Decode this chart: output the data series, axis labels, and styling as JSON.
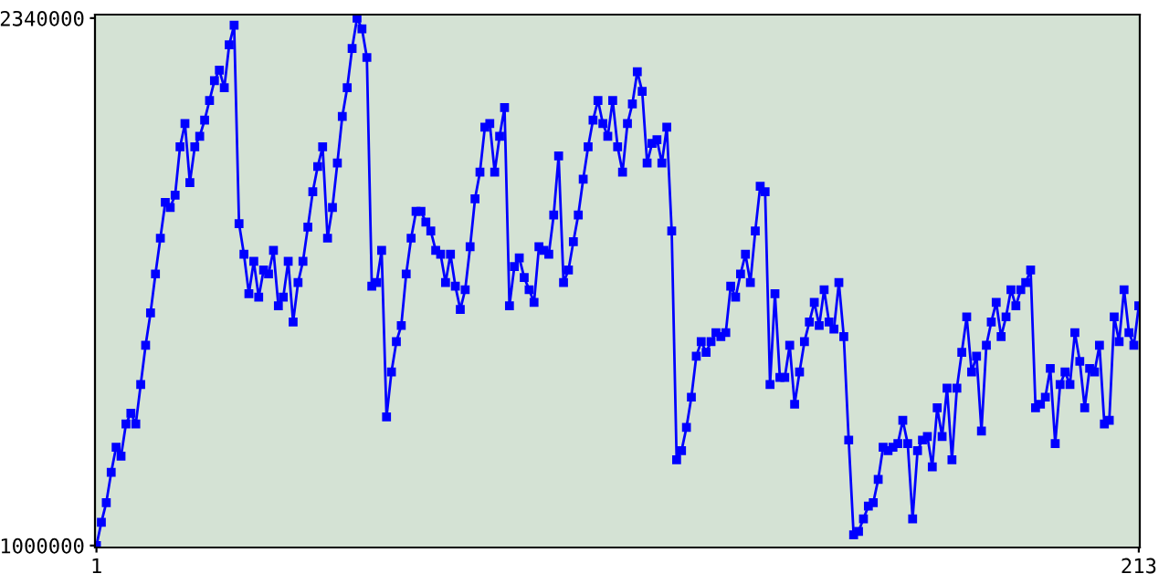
{
  "chart_data": {
    "type": "line",
    "x": [
      1,
      2,
      3,
      4,
      5,
      6,
      7,
      8,
      9,
      10,
      11,
      12,
      13,
      14,
      15,
      16,
      17,
      18,
      19,
      20,
      21,
      22,
      23,
      24,
      25,
      26,
      27,
      28,
      29,
      30,
      31,
      32,
      33,
      34,
      35,
      36,
      37,
      38,
      39,
      40,
      41,
      42,
      43,
      44,
      45,
      46,
      47,
      48,
      49,
      50,
      51,
      52,
      53,
      54,
      55,
      56,
      57,
      58,
      59,
      60,
      61,
      62,
      63,
      64,
      65,
      66,
      67,
      68,
      69,
      70,
      71,
      72,
      73,
      74,
      75,
      76,
      77,
      78,
      79,
      80,
      81,
      82,
      83,
      84,
      85,
      86,
      87,
      88,
      89,
      90,
      91,
      92,
      93,
      94,
      95,
      96,
      97,
      98,
      99,
      100,
      101,
      102,
      103,
      104,
      105,
      106,
      107,
      108,
      109,
      110,
      111,
      112,
      113,
      114,
      115,
      116,
      117,
      118,
      119,
      120,
      121,
      122,
      123,
      124,
      125,
      126,
      127,
      128,
      129,
      130,
      131,
      132,
      133,
      134,
      135,
      136,
      137,
      138,
      139,
      140,
      141,
      142,
      143,
      144,
      145,
      146,
      147,
      148,
      149,
      150,
      151,
      152,
      153,
      154,
      155,
      156,
      157,
      158,
      159,
      160,
      161,
      162,
      163,
      164,
      165,
      166,
      167,
      168,
      169,
      170,
      171,
      172,
      173,
      174,
      175,
      176,
      177,
      178,
      179,
      180,
      181,
      182,
      183,
      184,
      185,
      186,
      187,
      188,
      189,
      190,
      191,
      192,
      193,
      194,
      195,
      196,
      197,
      198,
      199,
      200,
      201,
      202,
      203,
      204,
      205,
      206,
      207,
      208,
      209,
      210,
      211,
      212,
      213
    ],
    "series": [
      {
        "color": "#0000ff",
        "values": [
          1000000,
          1059000,
          1109000,
          1186000,
          1250000,
          1227000,
          1309000,
          1336000,
          1309000,
          1409000,
          1509000,
          1591000,
          1690000,
          1781000,
          1872000,
          1859000,
          1890000,
          2013000,
          2072000,
          1922000,
          2013000,
          2040000,
          2081000,
          2131000,
          2181000,
          2208000,
          2163000,
          2272000,
          2322000,
          1818000,
          1740000,
          1640000,
          1722000,
          1631000,
          1700000,
          1690000,
          1750000,
          1609000,
          1631000,
          1722000,
          1568000,
          1668000,
          1722000,
          1809000,
          1899000,
          1963000,
          2013000,
          1781000,
          1859000,
          1972000,
          2090000,
          2163000,
          2263000,
          2340000,
          2313000,
          2240000,
          1659000,
          1668000,
          1750000,
          1327000,
          1441000,
          1518000,
          1559000,
          1690000,
          1781000,
          1849000,
          1849000,
          1822000,
          1799000,
          1750000,
          1740000,
          1668000,
          1740000,
          1659000,
          1600000,
          1650000,
          1759000,
          1881000,
          1949000,
          2063000,
          2072000,
          1949000,
          2040000,
          2113000,
          1609000,
          1709000,
          1731000,
          1681000,
          1650000,
          1618000,
          1759000,
          1750000,
          1740000,
          1840000,
          1990000,
          1668000,
          1700000,
          1772000,
          1840000,
          1931000,
          2013000,
          2081000,
          2131000,
          2072000,
          2040000,
          2131000,
          2013000,
          1949000,
          2072000,
          2122000,
          2204000,
          2154000,
          1972000,
          2022000,
          2031000,
          1972000,
          2063000,
          1799000,
          1218000,
          1241000,
          1300000,
          1377000,
          1481000,
          1518000,
          1491000,
          1518000,
          1541000,
          1531000,
          1541000,
          1659000,
          1631000,
          1690000,
          1740000,
          1668000,
          1799000,
          1913000,
          1899000,
          1409000,
          1640000,
          1427000,
          1427000,
          1509000,
          1359000,
          1441000,
          1518000,
          1568000,
          1618000,
          1559000,
          1650000,
          1568000,
          1550000,
          1668000,
          1531000,
          1268000,
          1027000,
          1036000,
          1068000,
          1100000,
          1109000,
          1168000,
          1250000,
          1241000,
          1250000,
          1259000,
          1318000,
          1259000,
          1068000,
          1241000,
          1268000,
          1277000,
          1200000,
          1350000,
          1277000,
          1400000,
          1218000,
          1400000,
          1491000,
          1581000,
          1441000,
          1481000,
          1291000,
          1509000,
          1568000,
          1618000,
          1531000,
          1581000,
          1650000,
          1609000,
          1650000,
          1668000,
          1700000,
          1350000,
          1359000,
          1377000,
          1450000,
          1259000,
          1409000,
          1441000,
          1409000,
          1541000,
          1468000,
          1350000,
          1450000,
          1441000,
          1509000,
          1309000,
          1318000,
          1581000,
          1518000,
          1650000,
          1541000,
          1509000,
          1609000
        ]
      }
    ],
    "xlim": [
      0.7,
      213.2
    ],
    "ylim": [
      995000,
      2349000
    ],
    "xticks": [
      1,
      213
    ],
    "yticks": [
      1000000,
      2340000
    ],
    "marker": "square",
    "line_style": "solid",
    "grid": false,
    "legend": false
  }
}
